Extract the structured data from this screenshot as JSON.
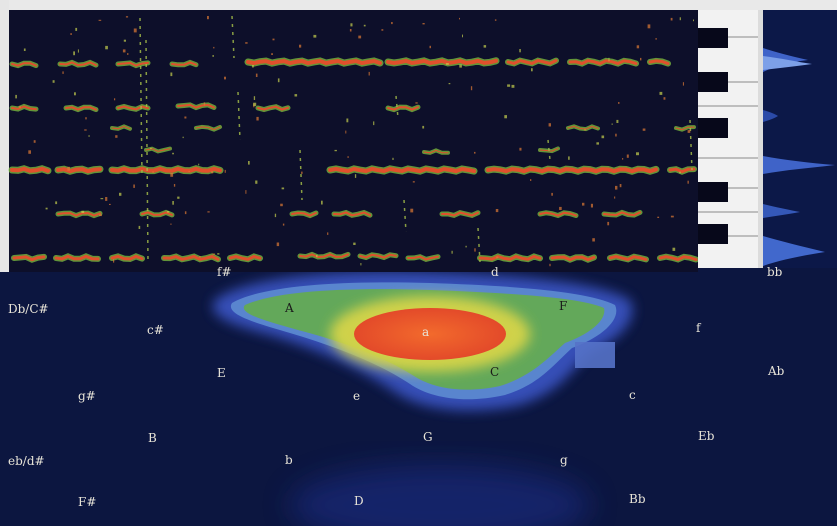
{
  "labels": {
    "top_panel": {
      "fsharp": "f#",
      "d": "d",
      "bb": "bb"
    },
    "map": {
      "db_csharp": "Db/C#",
      "A": "A",
      "F": "F",
      "csharp": "c#",
      "a": "a",
      "f": "f",
      "E": "E",
      "C": "C",
      "Ab": "Ab",
      "gsharp": "g#",
      "e": "e",
      "c": "c",
      "B": "B",
      "G": "G",
      "Eb": "Eb",
      "eb_dsharp": "eb/d#",
      "b": "b",
      "g": "g",
      "Fsharp": "F#",
      "D": "D",
      "Bb": "Bb"
    }
  },
  "colors": {
    "background": "#0c1640",
    "trace_core": "#e0502c",
    "trace_halo": "#7fc23f",
    "map_outer": "#4a63c8",
    "map_green": "#66ad5a",
    "map_yellow": "#d7d54a",
    "map_red": "#e8552c"
  }
}
